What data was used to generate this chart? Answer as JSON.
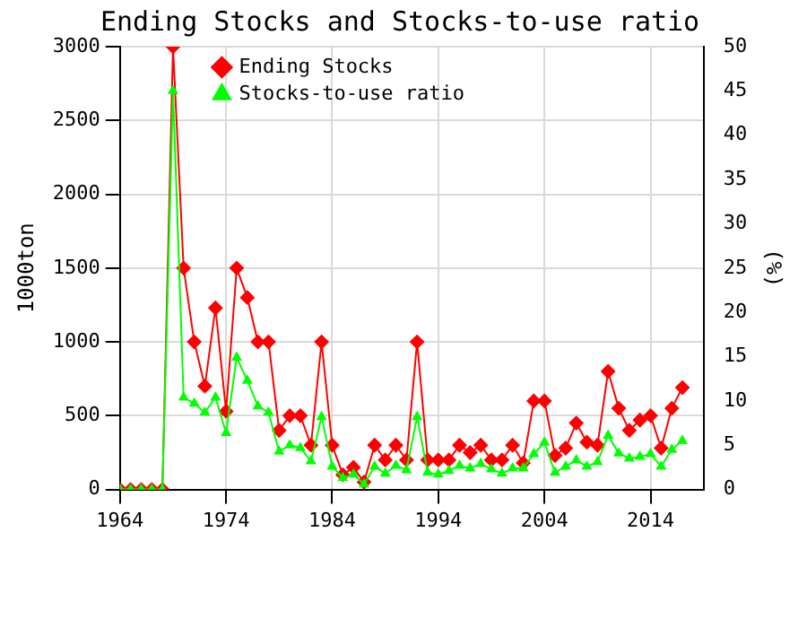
{
  "chart_data": {
    "type": "line",
    "title": "Ending Stocks and Stocks-to-use ratio",
    "ylabel": "1000ton",
    "y2label": "(%)",
    "x": [
      1964,
      1965,
      1966,
      1967,
      1968,
      1969,
      1970,
      1971,
      1972,
      1973,
      1974,
      1975,
      1976,
      1977,
      1978,
      1979,
      1980,
      1981,
      1982,
      1983,
      1984,
      1985,
      1986,
      1987,
      1988,
      1989,
      1990,
      1991,
      1992,
      1993,
      1994,
      1995,
      1996,
      1997,
      1998,
      1999,
      2000,
      2001,
      2002,
      2003,
      2004,
      2005,
      2006,
      2007,
      2008,
      2009,
      2010,
      2011,
      2012,
      2013,
      2014,
      2015,
      2016,
      2017
    ],
    "series": [
      {
        "name": "Ending Stocks",
        "color": "#ff0000",
        "marker": "diamond",
        "values": [
          0,
          0,
          0,
          0,
          0,
          3000,
          1500,
          1000,
          700,
          1230,
          530,
          1500,
          1300,
          1000,
          1000,
          400,
          500,
          500,
          300,
          1000,
          300,
          100,
          150,
          50,
          300,
          200,
          300,
          200,
          1000,
          200,
          200,
          200,
          300,
          250,
          300,
          200,
          200,
          300,
          180,
          600,
          600,
          230,
          280,
          450,
          320,
          300,
          800,
          550,
          400,
          470,
          500,
          280,
          550,
          690
        ]
      },
      {
        "name": "Stocks-to-use ratio",
        "color": "#00ff00",
        "marker": "triangle",
        "axis": "y2",
        "values": [
          0,
          0,
          0,
          0,
          0,
          45,
          10.4,
          9.7,
          8.7,
          10.4,
          6.4,
          14.9,
          12.3,
          9.4,
          8.7,
          4.3,
          5.0,
          4.7,
          3.2,
          8.2,
          2.6,
          1.3,
          1.7,
          0.6,
          2.6,
          1.8,
          2.7,
          2.2,
          8.2,
          1.9,
          1.7,
          2.1,
          2.7,
          2.4,
          2.9,
          2.3,
          1.8,
          2.4,
          2.4,
          4.0,
          5.3,
          1.9,
          2.6,
          3.3,
          2.6,
          3.1,
          6.1,
          4.1,
          3.5,
          3.7,
          4.0,
          2.6,
          4.5,
          5.5
        ]
      }
    ],
    "xlim": [
      1964,
      2019
    ],
    "xticks": [
      1964,
      1974,
      1984,
      1994,
      2004,
      2014
    ],
    "ylim": [
      0,
      3000
    ],
    "yticks": [
      0,
      500,
      1000,
      1500,
      2000,
      2500,
      3000
    ],
    "y2lim": [
      0,
      50
    ],
    "y2ticks": [
      0,
      5,
      10,
      15,
      20,
      25,
      30,
      35,
      40,
      45,
      50
    ],
    "grid": true,
    "legend": "top left"
  }
}
